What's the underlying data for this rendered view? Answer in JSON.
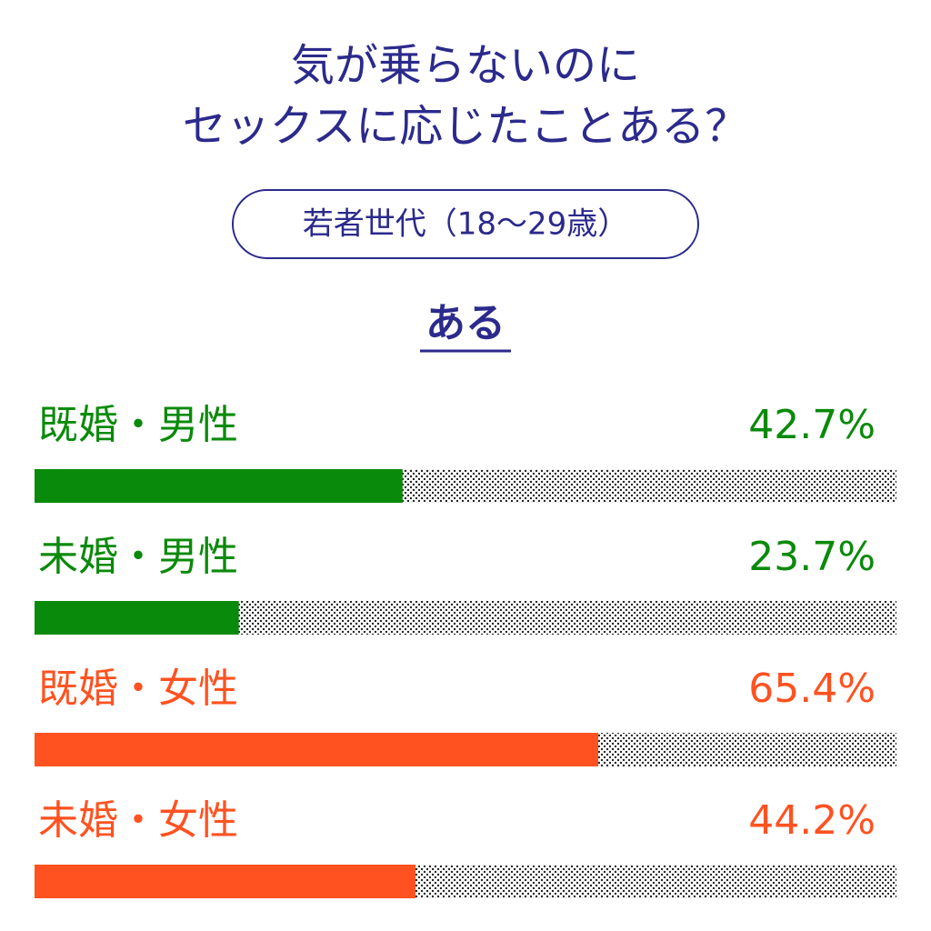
{
  "chart_data": {
    "type": "bar",
    "orientation": "horizontal",
    "title": [
      "気が乗らないのに",
      "セックスに応じたことある？"
    ],
    "subtitle": "若者世代（18〜29歳）",
    "heading": "ある",
    "categories": [
      "既婚・男性",
      "未婚・男性",
      "既婚・女性",
      "未婚・女性"
    ],
    "values": [
      42.7,
      23.7,
      65.4,
      44.2
    ],
    "value_labels": [
      "42.7%",
      "23.7%",
      "65.4%",
      "44.2%"
    ],
    "colors": [
      "#0a8a0a",
      "#0a8a0a",
      "#ff5220",
      "#ff5220"
    ],
    "xlim": [
      0,
      100
    ]
  }
}
